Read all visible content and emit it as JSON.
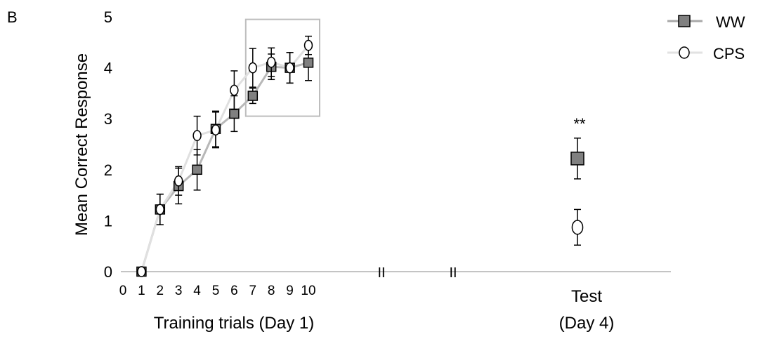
{
  "panel_label": "B",
  "chart_data": {
    "type": "line",
    "ylabel": "Mean Correct Response",
    "xlabel": "Training trials (Day 1)",
    "test_label_line1": "Test",
    "test_label_line2": "(Day 4)",
    "significance": "**",
    "break_marks": [
      "II",
      "II"
    ],
    "ylim": [
      0,
      5
    ],
    "yticks": [
      "0",
      "1",
      "2",
      "3",
      "4",
      "5"
    ],
    "xticks": [
      "0",
      "1",
      "2",
      "3",
      "4",
      "5",
      "6",
      "7",
      "8",
      "9",
      "10"
    ],
    "legend_position": "top-right",
    "highlight_box_trials": [
      7,
      10
    ],
    "series": [
      {
        "name": "WW",
        "marker": "square",
        "color": "#808080",
        "line_color": "#b8b8b8",
        "x": [
          1,
          2,
          3,
          4,
          5,
          6,
          7,
          8,
          9,
          10
        ],
        "values": [
          0,
          1.22,
          1.68,
          2.0,
          2.8,
          3.1,
          3.45,
          4.02,
          4.0,
          4.1
        ],
        "errors": [
          0,
          0.3,
          0.35,
          0.4,
          0.35,
          0.35,
          0.15,
          0.25,
          0.3,
          0.35
        ],
        "test_value": 2.22,
        "test_error": 0.4
      },
      {
        "name": "CPS",
        "marker": "circle",
        "color": "#ffffff",
        "line_color": "#e0e0e0",
        "x": [
          1,
          2,
          3,
          4,
          5,
          6,
          7,
          8,
          9,
          10
        ],
        "values": [
          0,
          1.22,
          1.78,
          2.67,
          2.78,
          3.56,
          4.0,
          4.11,
          4.0,
          4.44
        ],
        "errors": [
          0,
          0.3,
          0.28,
          0.38,
          0.35,
          0.38,
          0.38,
          0.28,
          0.3,
          0.18
        ],
        "test_value": 0.87,
        "test_error": 0.35
      }
    ]
  }
}
